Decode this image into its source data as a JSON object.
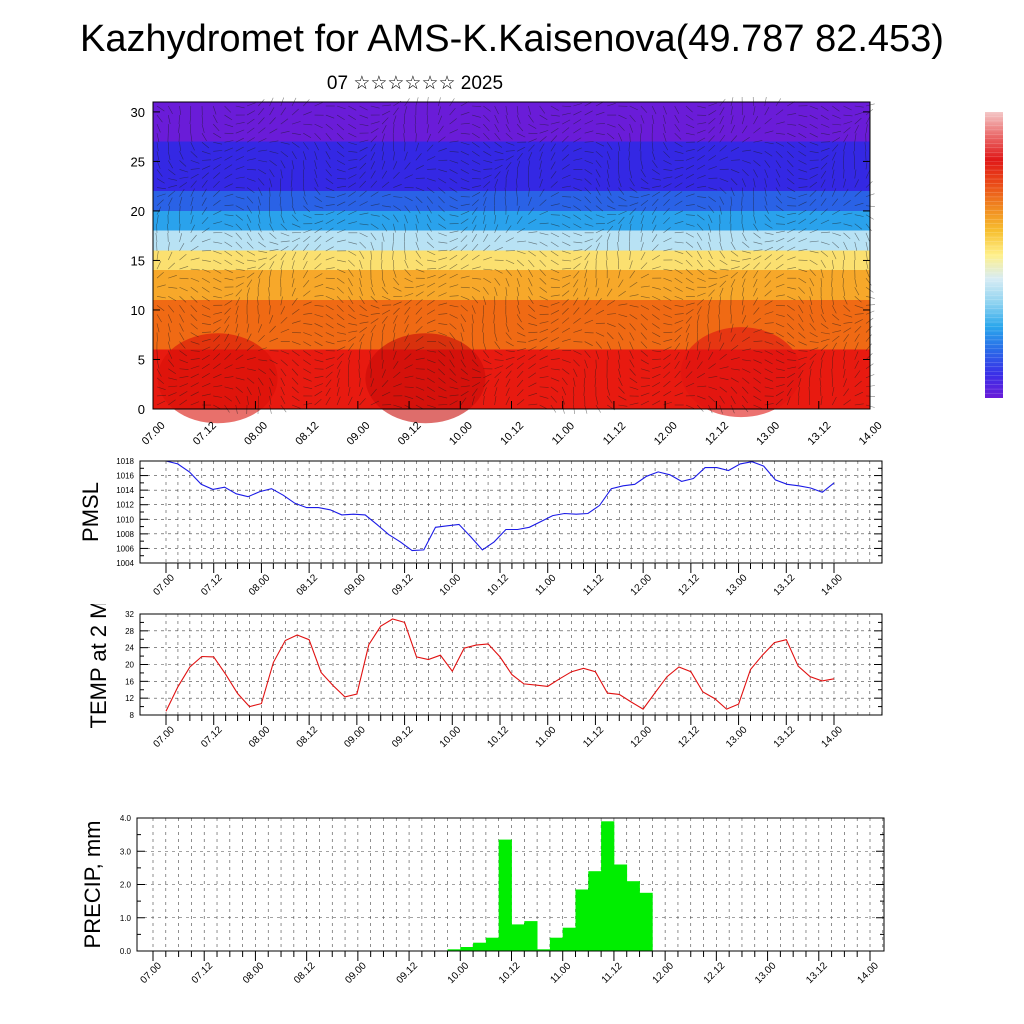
{
  "title": "Kazhydromet for AMS-K.Kaisenova(49.787 82.453)",
  "subtitle": "07 ☆☆☆☆☆☆ 2025",
  "chart_data": [
    {
      "type": "heatmap",
      "id": "cross-section",
      "x_ticks": [
        "07.00",
        "07.12",
        "08.00",
        "08.12",
        "09.00",
        "09.12",
        "10.00",
        "10.12",
        "11.00",
        "11.12",
        "12.00",
        "12.12",
        "13.00",
        "13.12",
        "14.00"
      ],
      "y_ticks": [
        0,
        5,
        10,
        15,
        20,
        25,
        30
      ],
      "ylim": [
        0,
        31
      ],
      "colorbar": [
        "#6a1bd8",
        "#3a2fe8",
        "#2a6ae8",
        "#2aa7ec",
        "#8fd3f0",
        "#d7ecf4",
        "#fff08a",
        "#f7c030",
        "#f08820",
        "#ea4a18",
        "#e01818",
        "#ea6a6a",
        "#f4c8c8"
      ],
      "layers": [
        {
          "from": 0,
          "to": 6,
          "color": "#e81a10"
        },
        {
          "from": 6,
          "to": 11,
          "color": "#f06a14"
        },
        {
          "from": 11,
          "to": 14,
          "color": "#f7a82a"
        },
        {
          "from": 14,
          "to": 16,
          "color": "#fbe070"
        },
        {
          "from": 16,
          "to": 18,
          "color": "#b8e2f4"
        },
        {
          "from": 18,
          "to": 20,
          "color": "#2aa2ec"
        },
        {
          "from": 20,
          "to": 22,
          "color": "#2a62e6"
        },
        {
          "from": 22,
          "to": 27,
          "color": "#3428e4"
        },
        {
          "from": 27,
          "to": 31,
          "color": "#6a1cd8"
        }
      ]
    },
    {
      "type": "line",
      "id": "pmsl",
      "ylabel": "PMSL",
      "ylim": [
        1004,
        1018
      ],
      "y_ticks": [
        1004,
        1006,
        1008,
        1010,
        1012,
        1014,
        1016,
        1018
      ],
      "x_ticks": [
        "07.00",
        "07.12",
        "08.00",
        "08.12",
        "09.00",
        "09.12",
        "10.00",
        "10.12",
        "11.00",
        "11.12",
        "12.00",
        "12.12",
        "13.00",
        "13.12",
        "14.00"
      ],
      "color": "#1a1ae6",
      "values": [
        1018,
        1017.6,
        1016.5,
        1014.8,
        1014.1,
        1014.4,
        1013.5,
        1013.1,
        1013.8,
        1014.2,
        1013.3,
        1012.2,
        1011.6,
        1011.6,
        1011.3,
        1010.6,
        1010.7,
        1010.6,
        1009.3,
        1007.9,
        1006.9,
        1005.7,
        1005.8,
        1008.9,
        1009.1,
        1009.3,
        1007.6,
        1005.8,
        1006.9,
        1008.6,
        1008.6,
        1008.9,
        1009.7,
        1010.5,
        1010.8,
        1010.7,
        1010.8,
        1011.9,
        1014.2,
        1014.6,
        1014.8,
        1015.9,
        1016.5,
        1016.1,
        1015.2,
        1015.6,
        1017.1,
        1017.1,
        1016.7,
        1017.6,
        1017.9,
        1017.3,
        1015.4,
        1014.8,
        1014.6,
        1014.3,
        1013.7,
        1015.0
      ]
    },
    {
      "type": "line",
      "id": "temp",
      "ylabel": "TEMP at 2 M",
      "ylim": [
        8,
        32
      ],
      "y_ticks": [
        8,
        12,
        16,
        20,
        24,
        28,
        32
      ],
      "x_ticks": [
        "07.00",
        "07.12",
        "08.00",
        "08.12",
        "09.00",
        "09.12",
        "10.00",
        "10.12",
        "11.00",
        "11.12",
        "12.00",
        "12.12",
        "13.00",
        "13.12",
        "14.00"
      ],
      "color": "#e01010",
      "values": [
        8.9,
        14.7,
        19.4,
        21.9,
        21.8,
        17.7,
        13.1,
        10.0,
        10.7,
        20.5,
        25.7,
        27.0,
        25.9,
        18.1,
        15.0,
        12.3,
        13.0,
        24.7,
        29.1,
        30.8,
        30.0,
        21.8,
        21.2,
        22.2,
        18.4,
        23.9,
        24.6,
        24.9,
        21.8,
        17.6,
        15.4,
        15.1,
        14.8,
        16.6,
        18.3,
        19.1,
        18.3,
        13.2,
        12.9,
        11.1,
        9.4,
        13.3,
        17.1,
        19.4,
        18.3,
        13.5,
        11.9,
        9.4,
        10.6,
        18.8,
        22.2,
        25.2,
        25.9,
        19.6,
        17.1,
        16.1,
        16.6
      ]
    },
    {
      "type": "bar",
      "id": "precip",
      "ylabel": "PRECIP, mm",
      "ylim": [
        0,
        4.0
      ],
      "y_ticks": [
        "0.0",
        "1.0",
        "2.0",
        "3.0",
        "4.0"
      ],
      "x_ticks": [
        "07.00",
        "07.12",
        "08.00",
        "08.12",
        "09.00",
        "09.12",
        "10.00",
        "10.12",
        "11.00",
        "11.12",
        "12.00",
        "12.12",
        "13.00",
        "13.12",
        "14.00"
      ],
      "color": "#00ee00",
      "values": [
        0,
        0,
        0,
        0,
        0,
        0,
        0,
        0,
        0,
        0,
        0,
        0,
        0,
        0,
        0,
        0,
        0,
        0,
        0,
        0,
        0,
        0,
        0,
        0.05,
        0.12,
        0.25,
        0.4,
        3.35,
        0.8,
        0.9,
        0.05,
        0.4,
        0.7,
        1.85,
        2.4,
        3.9,
        2.6,
        2.1,
        1.75,
        0,
        0,
        0,
        0,
        0,
        0,
        0,
        0,
        0,
        0,
        0,
        0,
        0,
        0,
        0,
        0,
        0
      ]
    }
  ]
}
